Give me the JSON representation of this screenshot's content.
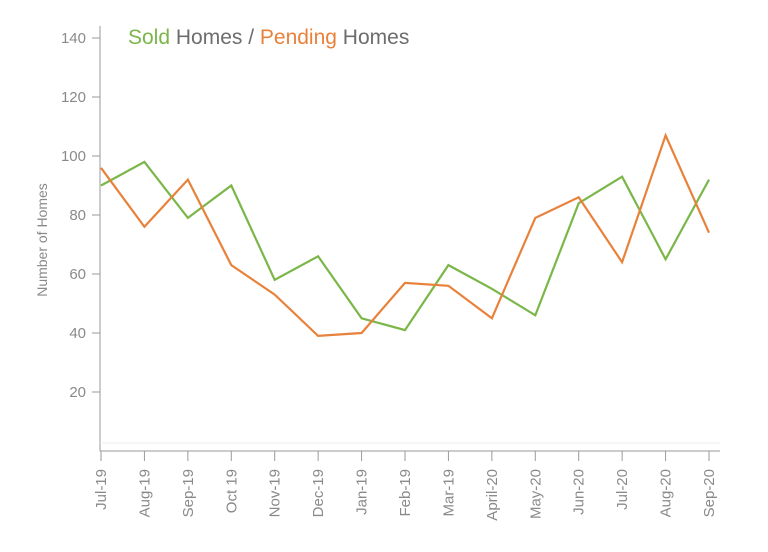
{
  "chart_data": {
    "type": "line",
    "title": {
      "parts": [
        {
          "text": "Sold",
          "color": "#7ab648"
        },
        {
          "text": " Homes / ",
          "color": "#6d6d6d"
        },
        {
          "text": "Pending",
          "color": "#e8823a"
        },
        {
          "text": " Homes",
          "color": "#6d6d6d"
        }
      ]
    },
    "xlabel": "",
    "ylabel": "Number of Homes",
    "ylim": [
      0,
      140
    ],
    "yticks": [
      20,
      40,
      60,
      80,
      100,
      120,
      140
    ],
    "categories": [
      "Jul-19",
      "Aug-19",
      "Sep-19",
      "Oct 19",
      "Nov-19",
      "Dec-19",
      "Jan-19",
      "Feb-19",
      "Mar-19",
      "April-20",
      "May-20",
      "Jun-20",
      "Jul-20",
      "Aug-20",
      "Sep-20"
    ],
    "series": [
      {
        "name": "Sold Homes",
        "color": "#7ab648",
        "values": [
          90,
          98,
          79,
          90,
          58,
          66,
          45,
          41,
          63,
          55,
          46,
          84,
          93,
          65,
          92
        ]
      },
      {
        "name": "Pending Homes",
        "color": "#e8823a",
        "values": [
          96,
          76,
          92,
          63,
          53,
          39,
          40,
          57,
          56,
          45,
          79,
          86,
          64,
          107,
          74
        ]
      }
    ],
    "grid": false,
    "legend": "top-left"
  }
}
